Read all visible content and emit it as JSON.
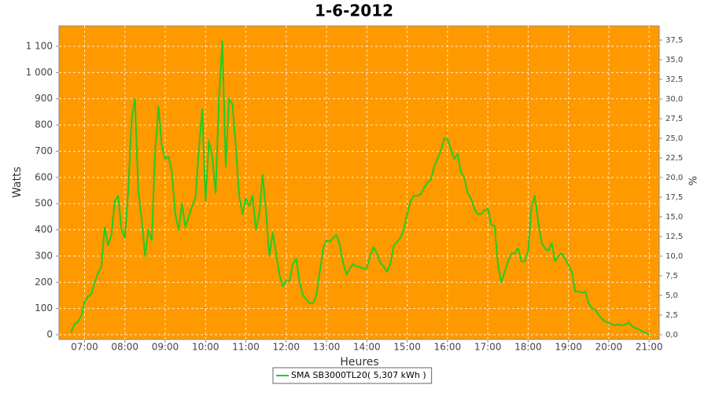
{
  "chart_data": {
    "type": "line",
    "title": "1-6-2012",
    "x_label": "Heures",
    "y_label": "Watts",
    "y2_label": "%",
    "background": "#ff9900",
    "grid": true,
    "xlim": [
      "06:22",
      "21:15"
    ],
    "xticks": [
      "07:00",
      "08:00",
      "09:00",
      "10:00",
      "11:00",
      "12:00",
      "13:00",
      "14:00",
      "15:00",
      "16:00",
      "17:00",
      "18:00",
      "19:00",
      "20:00",
      "21:00"
    ],
    "ylim": [
      -18,
      1178
    ],
    "yticks": [
      0,
      100,
      200,
      300,
      400,
      500,
      600,
      700,
      800,
      900,
      {
        "value": 1000,
        "label": "1 000"
      },
      {
        "value": 1100,
        "label": "1 100"
      }
    ],
    "y2lim": [
      -0.6,
      39.3
    ],
    "y2ticks": [
      {
        "value": 0,
        "label": "0,0"
      },
      {
        "value": 2.5,
        "label": "2,5"
      },
      {
        "value": 5,
        "label": "5,0"
      },
      {
        "value": 7.5,
        "label": "7,5"
      },
      {
        "value": 10,
        "label": "10,0"
      },
      {
        "value": 12.5,
        "label": "12,5"
      },
      {
        "value": 15,
        "label": "15,0"
      },
      {
        "value": 17.5,
        "label": "17,5"
      },
      {
        "value": 20,
        "label": "20,0"
      },
      {
        "value": 22.5,
        "label": "22,5"
      },
      {
        "value": 25,
        "label": "25,0"
      },
      {
        "value": 27.5,
        "label": "27,5"
      },
      {
        "value": 30,
        "label": "30,0"
      },
      {
        "value": 32.5,
        "label": "32,5"
      },
      {
        "value": 35,
        "label": "35,0"
      },
      {
        "value": 37.5,
        "label": "37,5"
      }
    ],
    "x": [
      "06:40",
      "06:45",
      "06:50",
      "06:55",
      "07:00",
      "07:05",
      "07:10",
      "07:15",
      "07:20",
      "07:25",
      "07:30",
      "07:35",
      "07:40",
      "07:45",
      "07:50",
      "07:55",
      "08:00",
      "08:05",
      "08:10",
      "08:15",
      "08:20",
      "08:25",
      "08:30",
      "08:35",
      "08:40",
      "08:45",
      "08:50",
      "08:55",
      "09:00",
      "09:05",
      "09:10",
      "09:15",
      "09:20",
      "09:25",
      "09:30",
      "09:35",
      "09:40",
      "09:45",
      "09:50",
      "09:55",
      "10:00",
      "10:05",
      "10:10",
      "10:15",
      "10:20",
      "10:25",
      "10:30",
      "10:35",
      "10:40",
      "10:45",
      "10:50",
      "10:55",
      "11:00",
      "11:05",
      "11:10",
      "11:15",
      "11:20",
      "11:25",
      "11:30",
      "11:35",
      "11:40",
      "11:45",
      "11:50",
      "11:55",
      "12:00",
      "12:05",
      "12:10",
      "12:15",
      "12:20",
      "12:25",
      "12:30",
      "12:35",
      "12:40",
      "12:45",
      "12:50",
      "12:55",
      "13:00",
      "13:05",
      "13:10",
      "13:15",
      "13:20",
      "13:25",
      "13:30",
      "13:35",
      "13:40",
      "13:45",
      "13:50",
      "13:55",
      "14:00",
      "14:05",
      "14:10",
      "14:15",
      "14:20",
      "14:25",
      "14:30",
      "14:35",
      "14:40",
      "14:45",
      "14:50",
      "14:55",
      "15:00",
      "15:05",
      "15:10",
      "15:15",
      "15:20",
      "15:25",
      "15:30",
      "15:35",
      "15:40",
      "15:45",
      "15:50",
      "15:55",
      "16:00",
      "16:05",
      "16:10",
      "16:15",
      "16:20",
      "16:25",
      "16:30",
      "16:35",
      "16:40",
      "16:45",
      "16:50",
      "16:55",
      "17:00",
      "17:05",
      "17:10",
      "17:15",
      "17:20",
      "17:25",
      "17:30",
      "17:35",
      "17:40",
      "17:45",
      "17:50",
      "17:55",
      "18:00",
      "18:05",
      "18:10",
      "18:15",
      "18:20",
      "18:25",
      "18:30",
      "18:35",
      "18:40",
      "18:45",
      "18:50",
      "18:55",
      "19:00",
      "19:05",
      "19:10",
      "19:15",
      "19:20",
      "19:25",
      "19:30",
      "19:35",
      "19:40",
      "19:45",
      "19:50",
      "19:55",
      "20:00",
      "20:05",
      "20:10",
      "20:15",
      "20:20",
      "20:25",
      "20:30",
      "20:35",
      "20:40",
      "20:45",
      "20:50",
      "20:55",
      "21:00"
    ],
    "series": [
      {
        "name": "SMA SB3000TL20( 5,307 kWh )",
        "color": "#22cc22",
        "values": [
          10,
          40,
          48,
          70,
          125,
          145,
          155,
          200,
          235,
          260,
          410,
          340,
          380,
          510,
          530,
          400,
          370,
          550,
          820,
          900,
          550,
          440,
          300,
          400,
          360,
          700,
          870,
          720,
          670,
          680,
          620,
          460,
          400,
          500,
          410,
          450,
          490,
          520,
          700,
          860,
          510,
          740,
          680,
          540,
          900,
          1120,
          640,
          900,
          880,
          720,
          530,
          460,
          520,
          490,
          530,
          400,
          460,
          610,
          470,
          300,
          390,
          310,
          230,
          185,
          205,
          205,
          270,
          290,
          200,
          150,
          135,
          120,
          120,
          150,
          240,
          330,
          360,
          355,
          370,
          380,
          340,
          270,
          230,
          255,
          270,
          260,
          258,
          250,
          255,
          300,
          335,
          310,
          275,
          260,
          240,
          270,
          340,
          355,
          370,
          400,
          460,
          510,
          530,
          530,
          535,
          560,
          580,
          590,
          640,
          670,
          700,
          750,
          745,
          710,
          670,
          690,
          620,
          600,
          540,
          520,
          480,
          460,
          460,
          475,
          480,
          420,
          415,
          270,
          200,
          240,
          280,
          310,
          310,
          330,
          280,
          280,
          320,
          490,
          530,
          430,
          350,
          330,
          320,
          350,
          280,
          300,
          310,
          290,
          265,
          240,
          165,
          165,
          160,
          165,
          120,
          100,
          95,
          75,
          60,
          50,
          45,
          38,
          35,
          40,
          35,
          40,
          45,
          32,
          25,
          20,
          12,
          8,
          0
        ]
      }
    ]
  }
}
